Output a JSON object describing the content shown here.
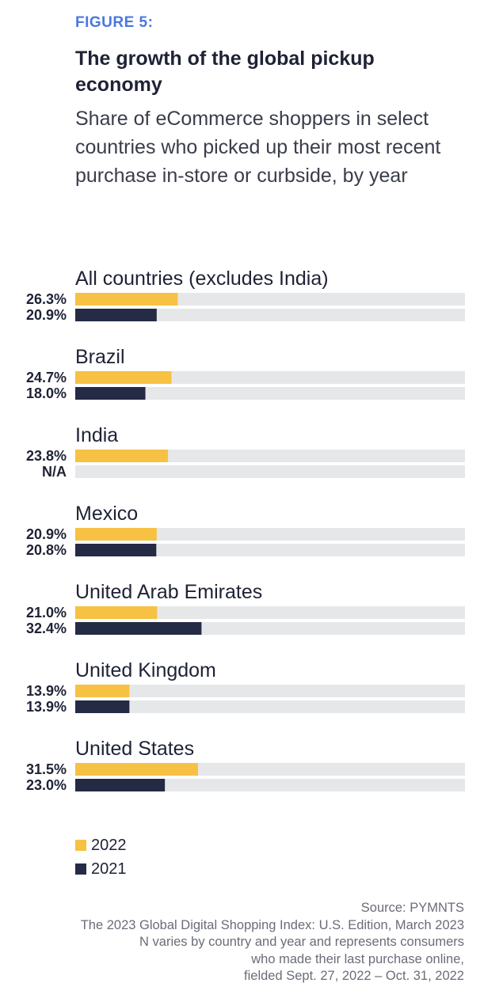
{
  "figure_label": "FIGURE 5:",
  "title": "The growth of the global pickup economy",
  "subtitle": "Share of eCommerce shoppers in select countries who picked up their most recent purchase in-store or curbside, by year",
  "colors": {
    "y2022": "#f7c143",
    "y2021": "#252a45",
    "track": "#e6e7e9"
  },
  "chart_data": {
    "type": "bar",
    "orientation": "horizontal",
    "categories": [
      "All countries (excludes India)",
      "Brazil",
      "India",
      "Mexico",
      "United Arab Emirates",
      "United Kingdom",
      "United States"
    ],
    "series": [
      {
        "name": "2022",
        "values": [
          26.3,
          24.7,
          23.8,
          20.9,
          21.0,
          13.9,
          31.5
        ],
        "labels": [
          "26.3%",
          "24.7%",
          "23.8%",
          "20.9%",
          "21.0%",
          "13.9%",
          "31.5%"
        ]
      },
      {
        "name": "2021",
        "values": [
          20.9,
          18.0,
          null,
          20.8,
          32.4,
          13.9,
          23.0
        ],
        "labels": [
          "20.9%",
          "18.0%",
          "N/A",
          "20.8%",
          "32.4%",
          "13.9%",
          "23.0%"
        ]
      }
    ],
    "xlim": [
      0,
      100
    ],
    "grid": false,
    "legend_position": "bottom-left"
  },
  "source_lines": [
    "Source: PYMNTS",
    "The 2023 Global Digital Shopping Index: U.S. Edition, March 2023",
    "N varies by country and year and represents consumers",
    "who made their last purchase online,",
    "fielded Sept. 27, 2022 – Oct. 31, 2022"
  ]
}
